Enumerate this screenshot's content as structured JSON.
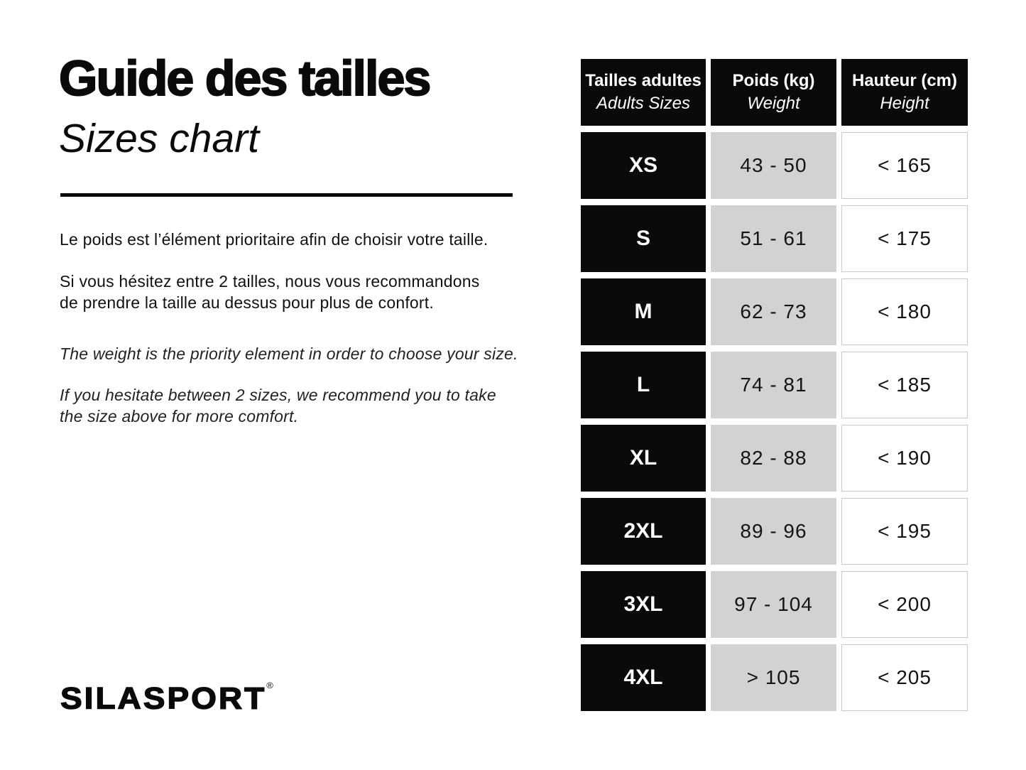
{
  "left": {
    "title_fr": "Guide des tailles",
    "title_en": "Sizes chart",
    "paragraphs": [
      {
        "lang": "fr",
        "lines": [
          "Le poids est l’élément prioritaire afin de choisir votre taille."
        ]
      },
      {
        "lang": "fr",
        "lines": [
          "Si vous hésitez entre 2 tailles, nous vous recommandons",
          "de prendre la taille au dessus pour plus de confort."
        ]
      },
      {
        "lang": "en",
        "lines": [
          "The weight is the priority element in order to choose your size."
        ]
      },
      {
        "lang": "en",
        "lines": [
          "If you hesitate between 2 sizes, we recommend you to take",
          "the size above for more comfort."
        ]
      }
    ],
    "logo_text": "SILASPORT",
    "logo_mark": "®"
  },
  "table": {
    "headers": [
      {
        "fr": "Tailles adultes",
        "en": "Adults Sizes"
      },
      {
        "fr": "Poids (kg)",
        "en": "Weight"
      },
      {
        "fr": "Hauteur (cm)",
        "en": "Height"
      }
    ],
    "rows": [
      {
        "size": "XS",
        "weight": "43 - 50",
        "height": "< 165"
      },
      {
        "size": "S",
        "weight": "51 - 61",
        "height": "< 175"
      },
      {
        "size": "M",
        "weight": "62 - 73",
        "height": "< 180"
      },
      {
        "size": "L",
        "weight": "74 - 81",
        "height": "< 185"
      },
      {
        "size": "XL",
        "weight": "82 - 88",
        "height": "< 190"
      },
      {
        "size": "2XL",
        "weight": "89 - 96",
        "height": "< 195"
      },
      {
        "size": "3XL",
        "weight": "97 - 104",
        "height": "< 200"
      },
      {
        "size": "4XL",
        "weight": "> 105",
        "height": "< 205"
      }
    ]
  },
  "colors": {
    "cell_black": "#0a0a0a",
    "cell_gray": "#d2d2d2",
    "cell_border": "#c9c9c9",
    "text": "#111111",
    "background": "#ffffff"
  },
  "chart_data": {
    "type": "table",
    "title": "Guide des tailles / Sizes chart",
    "columns": [
      "Tailles adultes / Adults Sizes",
      "Poids (kg) / Weight",
      "Hauteur (cm) / Height"
    ],
    "rows": [
      [
        "XS",
        "43 - 50",
        "< 165"
      ],
      [
        "S",
        "51 - 61",
        "< 175"
      ],
      [
        "M",
        "62 - 73",
        "< 180"
      ],
      [
        "L",
        "74 - 81",
        "< 185"
      ],
      [
        "XL",
        "82 - 88",
        "< 190"
      ],
      [
        "2XL",
        "89 - 96",
        "< 195"
      ],
      [
        "3XL",
        "97 - 104",
        "< 200"
      ],
      [
        "4XL",
        "> 105",
        "< 205"
      ]
    ]
  }
}
